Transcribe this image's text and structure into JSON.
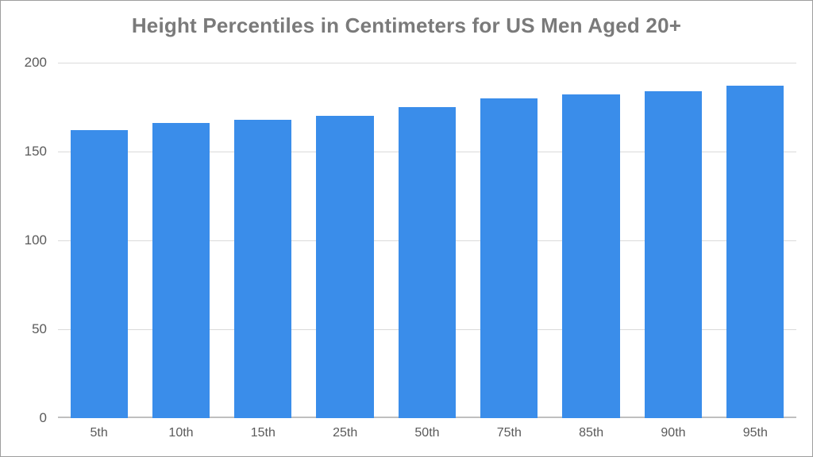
{
  "chart": {
    "type": "bar",
    "title": "Height Percentiles in Centimeters for US Men Aged 20+",
    "title_fontsize": 26,
    "title_color": "#7a7a7a",
    "categories": [
      "5th",
      "10th",
      "15th",
      "25th",
      "50th",
      "75th",
      "85th",
      "90th",
      "95th"
    ],
    "values": [
      162,
      166,
      168,
      170,
      175,
      180,
      182,
      184,
      187
    ],
    "bar_color": "#3a8dea",
    "bar_width": 0.7,
    "ylim": [
      0,
      200
    ],
    "ytick_step": 50,
    "yticks": [
      0,
      50,
      100,
      150,
      200
    ],
    "ylabel_fontsize": 17,
    "xlabel_fontsize": 16,
    "label_color": "#5a5a5a",
    "background_color": "#ffffff",
    "grid_color": "#dadada",
    "baseline_color": "#bfbfbf",
    "border_color": "#9e9e9e"
  }
}
